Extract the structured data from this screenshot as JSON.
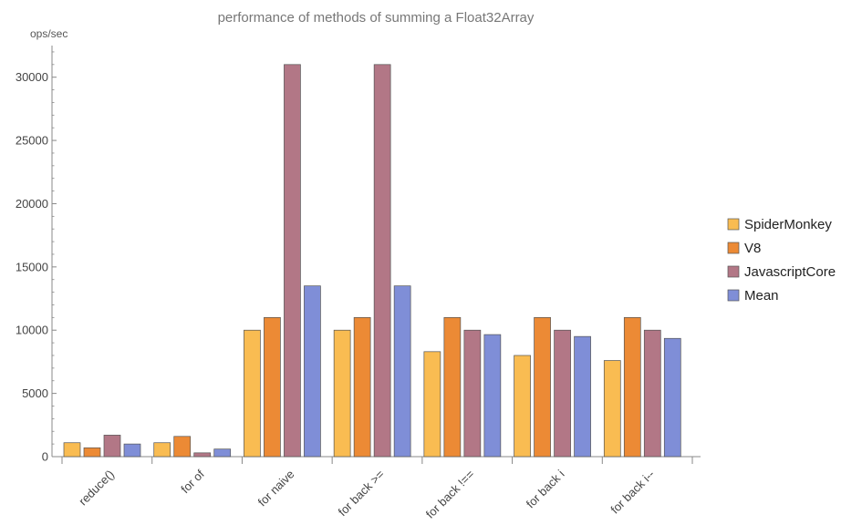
{
  "chart_data": {
    "type": "bar",
    "title": "performance of methods of summing a Float32Array",
    "ylabel": "ops/sec",
    "xlabel": "",
    "ylim": [
      0,
      32500
    ],
    "yticks": [
      0,
      5000,
      10000,
      15000,
      20000,
      25000,
      30000
    ],
    "categories": [
      "reduce()",
      "for of",
      "for naive",
      "for back >=",
      "for back !==",
      "for back i",
      "for back i--"
    ],
    "series": [
      {
        "name": "SpiderMonkey",
        "color": "#f9bc52",
        "values": [
          1100,
          1100,
          10000,
          10000,
          8300,
          8000,
          7600
        ]
      },
      {
        "name": "V8",
        "color": "#ec8a35",
        "values": [
          700,
          1600,
          11000,
          11000,
          11000,
          11000,
          11000
        ]
      },
      {
        "name": "JavascriptCore",
        "color": "#b27786",
        "values": [
          1700,
          300,
          31000,
          31000,
          10000,
          10000,
          10000
        ]
      },
      {
        "name": "Mean",
        "color": "#7f8ed7",
        "values": [
          1000,
          600,
          13500,
          13500,
          9650,
          9500,
          9350
        ]
      }
    ],
    "grid": false,
    "legend_position": "right"
  }
}
